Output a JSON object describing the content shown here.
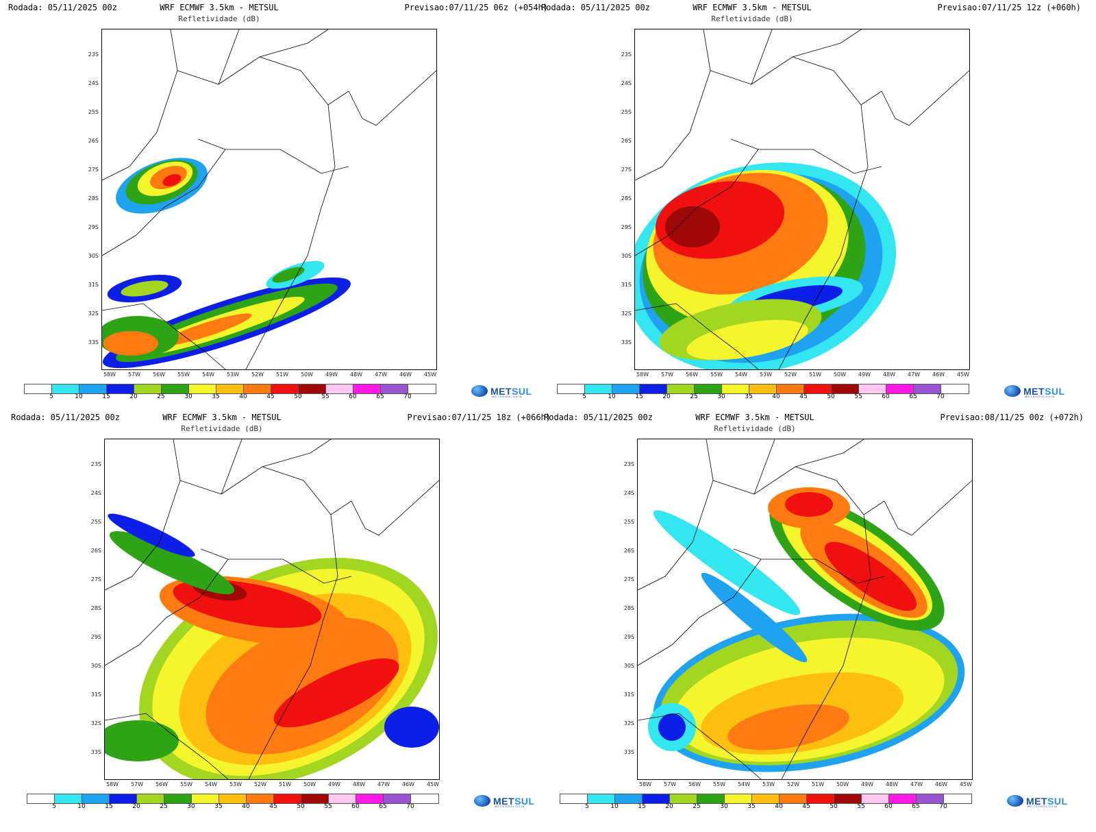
{
  "panels": [
    {
      "run": "Rodada: 05/11/2025 00z",
      "model": "WRF ECMWF 3.5km - METSUL",
      "variable": "Refletividade (dB)",
      "forecast": "Previsao:07/11/25 06z (+054h)"
    },
    {
      "run": "Rodada: 05/11/2025 00z",
      "model": "WRF ECMWF 3.5km - METSUL",
      "variable": "Refletividade (dB)",
      "forecast": "Previsao:07/11/25 12z (+060h)"
    },
    {
      "run": "Rodada: 05/11/2025 00z",
      "model": "WRF ECMWF 3.5km - METSUL",
      "variable": "Refletividade (dB)",
      "forecast": "Previsao:07/11/25 18z (+066h)"
    },
    {
      "run": "Rodada: 05/11/2025 00z",
      "model": "WRF ECMWF 3.5km - METSUL",
      "variable": "Refletividade (dB)",
      "forecast": "Previsao:08/11/25 00z (+072h)"
    }
  ],
  "lat_labels": [
    "23S",
    "24S",
    "25S",
    "26S",
    "27S",
    "28S",
    "29S",
    "30S",
    "31S",
    "32S",
    "33S"
  ],
  "lon_labels": [
    "58W",
    "57W",
    "56W",
    "55W",
    "54W",
    "53W",
    "52W",
    "51W",
    "50W",
    "49W",
    "48W",
    "47W",
    "46W",
    "45W"
  ],
  "colorbar": {
    "labels": [
      "5",
      "10",
      "15",
      "20",
      "25",
      "30",
      "35",
      "40",
      "45",
      "50",
      "55",
      "60",
      "65",
      "70"
    ],
    "colors": [
      "#ffffff",
      "#33e6f0",
      "#1fa3f0",
      "#0d1fe6",
      "#a3d620",
      "#2ea316",
      "#f5f52e",
      "#ffbf10",
      "#ff7a10",
      "#f01010",
      "#a00808",
      "#ffc8f0",
      "#ff1ae6",
      "#9955d0",
      "#ffffff"
    ]
  },
  "logo": {
    "name_a": "MET",
    "name_b": "SUL",
    "tagline": "METEOROLOGIA"
  },
  "map_style": {
    "border_color": "#000000",
    "palette": {
      "cyan": "#33e6f0",
      "lblue": "#1fa3f0",
      "blue": "#0d1fe6",
      "lgreen": "#a3d620",
      "green": "#2ea316",
      "yellow": "#f5f52e",
      "gold": "#ffbf10",
      "orange": "#ff7a10",
      "red": "#f01010",
      "dred": "#a00808"
    }
  }
}
